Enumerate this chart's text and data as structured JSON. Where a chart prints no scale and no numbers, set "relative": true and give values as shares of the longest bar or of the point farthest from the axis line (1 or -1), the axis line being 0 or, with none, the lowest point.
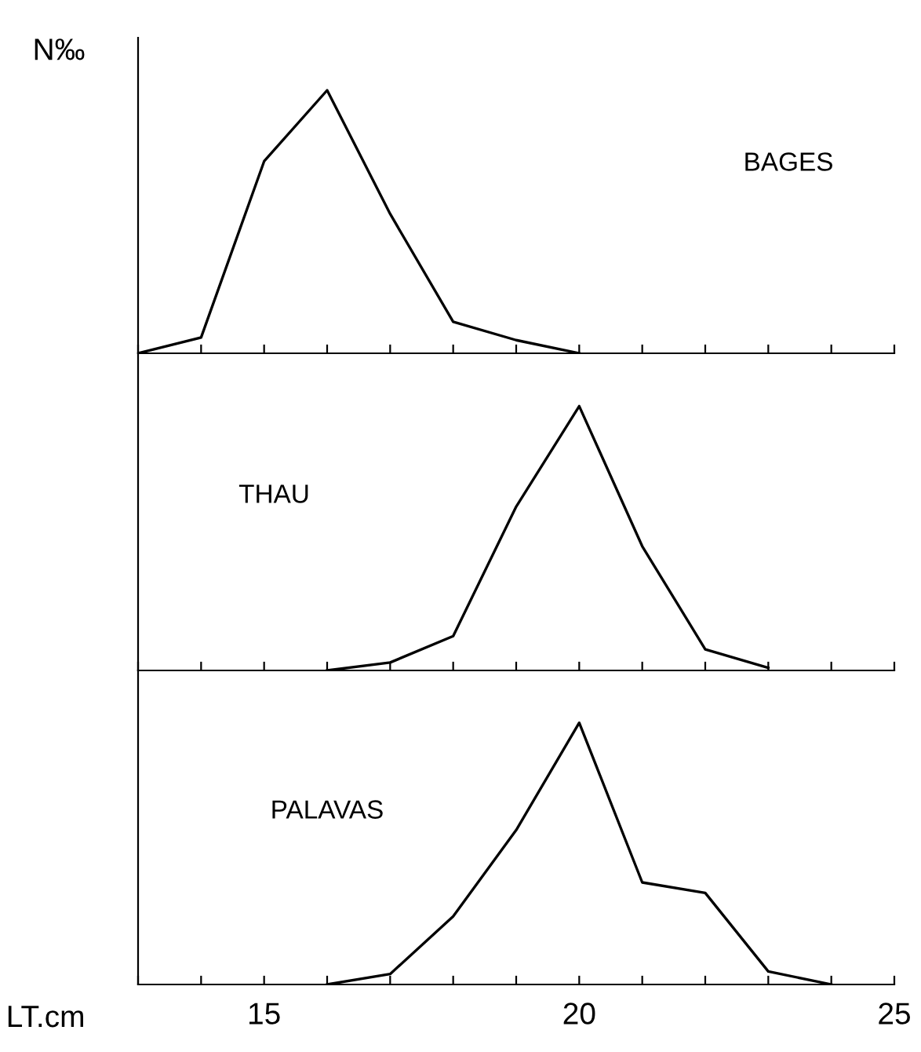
{
  "chart_data": [
    {
      "type": "line",
      "relative": true,
      "ylabel": "N‰",
      "x": [
        13,
        14,
        15,
        16,
        17,
        18,
        19,
        20
      ],
      "xlim": [
        13,
        25
      ],
      "xticks": [
        {
          "value": 13,
          "label": null
        },
        {
          "value": 14,
          "label": null
        },
        {
          "value": 15,
          "label": null
        },
        {
          "value": 16,
          "label": null
        },
        {
          "value": 17,
          "label": null
        },
        {
          "value": 18,
          "label": null
        },
        {
          "value": 19,
          "label": null
        },
        {
          "value": 20,
          "label": null
        },
        {
          "value": 21,
          "label": null
        },
        {
          "value": 22,
          "label": null
        },
        {
          "value": 23,
          "label": null
        },
        {
          "value": 24,
          "label": null
        },
        {
          "value": 25,
          "label": null
        }
      ],
      "tick_labels": false,
      "series": [
        {
          "name": "BAGES",
          "color": "#000000",
          "values": [
            0,
            0.06,
            0.73,
            1,
            0.53,
            0.12,
            0.05,
            0
          ]
        }
      ]
    },
    {
      "type": "line",
      "relative": true,
      "x": [
        16,
        17,
        18,
        19,
        20,
        21,
        22,
        23
      ],
      "xlim": [
        13,
        25
      ],
      "xticks": [
        {
          "value": 13,
          "label": null
        },
        {
          "value": 14,
          "label": null
        },
        {
          "value": 15,
          "label": null
        },
        {
          "value": 16,
          "label": null
        },
        {
          "value": 17,
          "label": null
        },
        {
          "value": 18,
          "label": null
        },
        {
          "value": 19,
          "label": null
        },
        {
          "value": 20,
          "label": null
        },
        {
          "value": 21,
          "label": null
        },
        {
          "value": 22,
          "label": null
        },
        {
          "value": 23,
          "label": null
        },
        {
          "value": 24,
          "label": null
        },
        {
          "value": 25,
          "label": null
        }
      ],
      "tick_labels": false,
      "series": [
        {
          "name": "THAU",
          "color": "#000000",
          "values": [
            0,
            0.03,
            0.13,
            0.62,
            1,
            0.47,
            0.08,
            0.01
          ]
        }
      ]
    },
    {
      "type": "line",
      "relative": true,
      "xlabel": "LT.cm",
      "x": [
        16,
        17,
        18,
        19,
        20,
        21,
        22,
        23,
        24
      ],
      "xlim": [
        13,
        25
      ],
      "xticks": [
        {
          "value": 13,
          "label": null
        },
        {
          "value": 14,
          "label": null
        },
        15,
        {
          "value": 16,
          "label": null
        },
        {
          "value": 17,
          "label": null
        },
        {
          "value": 18,
          "label": null
        },
        {
          "value": 19,
          "label": null
        },
        20,
        {
          "value": 21,
          "label": null
        },
        {
          "value": 22,
          "label": null
        },
        {
          "value": 23,
          "label": null
        },
        {
          "value": 24,
          "label": null
        },
        25
      ],
      "tick_labels": "x",
      "series": [
        {
          "name": "PALAVAS",
          "color": "#000000",
          "values": [
            0,
            0.04,
            0.26,
            0.59,
            1,
            0.39,
            0.35,
            0.05,
            0
          ]
        }
      ]
    }
  ]
}
